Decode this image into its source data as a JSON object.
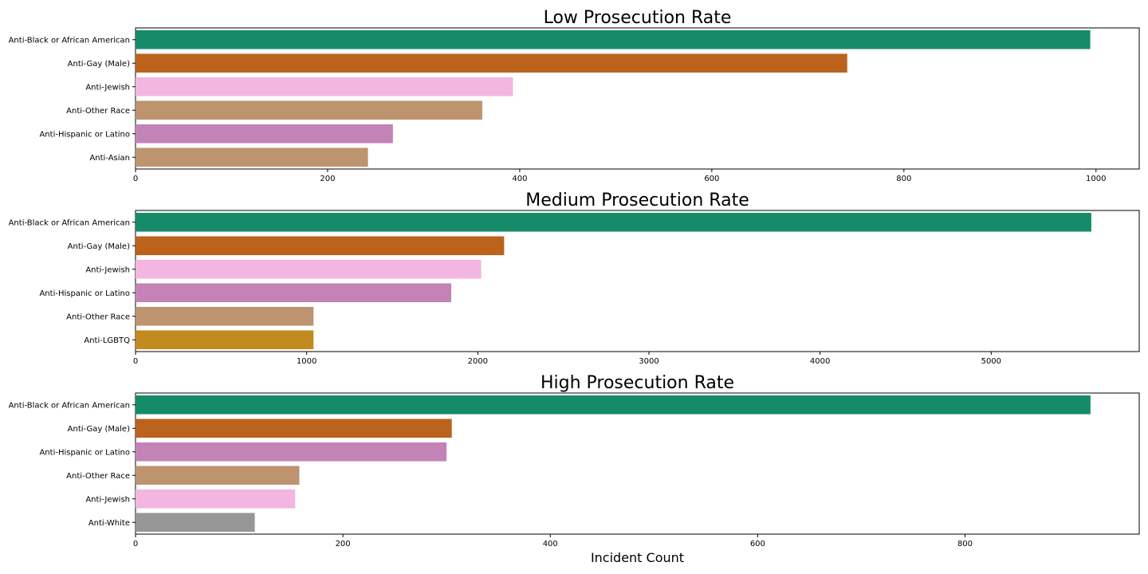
{
  "chart_data": [
    {
      "type": "bar",
      "orientation": "horizontal",
      "title": "Low Prosecution Rate",
      "xlabel": "",
      "ylabel": "",
      "categories": [
        "Anti-Black or African American",
        "Anti-Gay (Male)",
        "Anti-Jewish",
        "Anti-Other Race",
        "Anti-Hispanic or Latino",
        "Anti-Asian"
      ],
      "values": [
        994,
        741,
        393,
        361,
        268,
        242
      ],
      "colors": [
        "#158b6a",
        "#bb621d",
        "#f2b6e0",
        "#bd9370",
        "#c383b7",
        "#bd9370"
      ],
      "xlim": [
        0,
        1045
      ],
      "xticks": [
        0,
        200,
        400,
        600,
        800,
        1000
      ],
      "grid": false,
      "legend": "none"
    },
    {
      "type": "bar",
      "orientation": "horizontal",
      "title": "Medium Prosecution Rate",
      "xlabel": "",
      "ylabel": "",
      "categories": [
        "Anti-Black or African American",
        "Anti-Gay (Male)",
        "Anti-Jewish",
        "Anti-Hispanic or Latino",
        "Anti-Other Race",
        "Anti-LGBTQ"
      ],
      "values": [
        5585,
        2154,
        2020,
        1845,
        1040,
        1040
      ],
      "colors": [
        "#158b6a",
        "#bb621d",
        "#f2b6e0",
        "#c383b7",
        "#bd9370",
        "#c38a1f"
      ],
      "xlim": [
        0,
        5865
      ],
      "xticks": [
        0,
        1000,
        2000,
        3000,
        4000,
        5000
      ],
      "grid": false,
      "legend": "none"
    },
    {
      "type": "bar",
      "orientation": "horizontal",
      "title": "High Prosecution Rate",
      "xlabel": "Incident Count",
      "ylabel": "",
      "categories": [
        "Anti-Black or African American",
        "Anti-Gay (Male)",
        "Anti-Hispanic or Latino",
        "Anti-Other Race",
        "Anti-Jewish",
        "Anti-White"
      ],
      "values": [
        921,
        305,
        300,
        158,
        154,
        115
      ],
      "colors": [
        "#158b6a",
        "#bb621d",
        "#c383b7",
        "#bd9370",
        "#f2b6e0",
        "#969696"
      ],
      "xlim": [
        0,
        968
      ],
      "xticks": [
        0,
        200,
        400,
        600,
        800
      ],
      "grid": false,
      "legend": "none"
    }
  ]
}
